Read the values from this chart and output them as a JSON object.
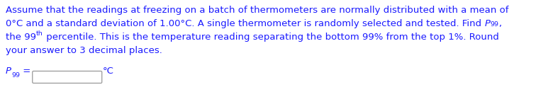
{
  "line1": "Assume that the readings at freezing on a batch of thermometers are normally distributed with a mean of",
  "line2_part1": "0°C and a standard deviation of 1.00°C. A single thermometer is randomly selected and tested. Find ",
  "line2_p99": "P",
  "line2_p99_sub": "99",
  "line2_comma": ",",
  "line3_part1": "the 99",
  "line3_th": "th",
  "line3_part2": " percentile. This is the temperature reading separating the bottom 99% from the top 1%. Round",
  "line4": "your answer to 3 decimal places.",
  "label_P": "P",
  "label_99": "99",
  "label_eq": " =",
  "label_C": "°C",
  "text_color": "#1a1aff",
  "bg_color": "#ffffff",
  "font_size": 9.5
}
